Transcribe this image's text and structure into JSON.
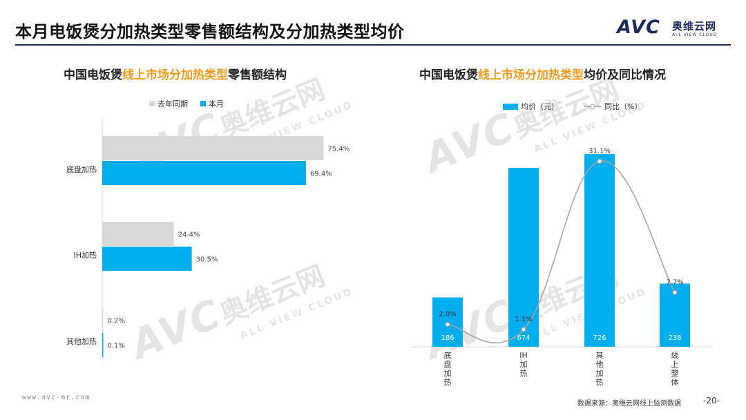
{
  "page": {
    "title": "本月电饭煲分加热类型零售额结构及分加热类型均价",
    "logo_avc": "AVC",
    "logo_cn": "奥维云网",
    "logo_en": "ALL VIEW CLOUD",
    "url": "www.avc-mr.com",
    "source": "数据来源：奥维云网线上监测数据",
    "page_number": "-20-"
  },
  "watermarks": {
    "avc": "AVC",
    "cn": "奥维云网",
    "en": "ALL VIEW CLOUD"
  },
  "colors": {
    "current": "#00aeef",
    "last_year": "#d9d9d9",
    "line": "#a6a6a6",
    "highlight": "#f39a1e",
    "navy": "#1d2a5c"
  },
  "chart_data": [
    {
      "type": "bar",
      "orientation": "horizontal",
      "title_prefix": "中国电饭煲",
      "title_highlight": "线上市场分加热类型",
      "title_suffix": "零售额结构",
      "categories": [
        "底盘加热",
        "IH加热",
        "其他加热"
      ],
      "series": [
        {
          "name": "去年同期",
          "values": [
            75.4,
            24.4,
            0.2
          ],
          "labels": [
            "75.4%",
            "24.4%",
            "0.2%"
          ],
          "color": "#d9d9d9"
        },
        {
          "name": "本月",
          "values": [
            69.4,
            30.5,
            0.1
          ],
          "labels": [
            "69.4%",
            "30.5%",
            "0.1%"
          ],
          "color": "#00aeef"
        }
      ],
      "xlim": [
        0,
        80
      ],
      "legend": "top-left",
      "grid": false
    },
    {
      "type": "bar+line",
      "title_prefix": "中国电饭煲",
      "title_highlight": "线上市场分加热类型",
      "title_suffix": "均价及同比情况",
      "categories": [
        "底盘加热",
        "IH加热",
        "其他加热",
        "线上整体"
      ],
      "category_labels": [
        "底\n盘\n加\n热",
        "IH\n加\n热",
        "其\n他\n加\n热",
        "线\n上\n整\n体"
      ],
      "bar_series": {
        "name": "均价（元）",
        "values": [
          186,
          674,
          726,
          238
        ],
        "labels": [
          "186",
          "674",
          "726",
          "238"
        ],
        "color": "#00aeef"
      },
      "line_series": {
        "name": "同比（%）",
        "values": [
          2.0,
          1.1,
          31.1,
          7.7
        ],
        "labels": [
          "2.0%",
          "1.1%",
          "31.1%",
          "7.7%"
        ],
        "color": "#a6a6a6"
      },
      "bar_ylim": [
        0,
        760
      ],
      "line_ylim": [
        -2,
        34
      ],
      "legend": "top-center",
      "grid": false
    }
  ]
}
